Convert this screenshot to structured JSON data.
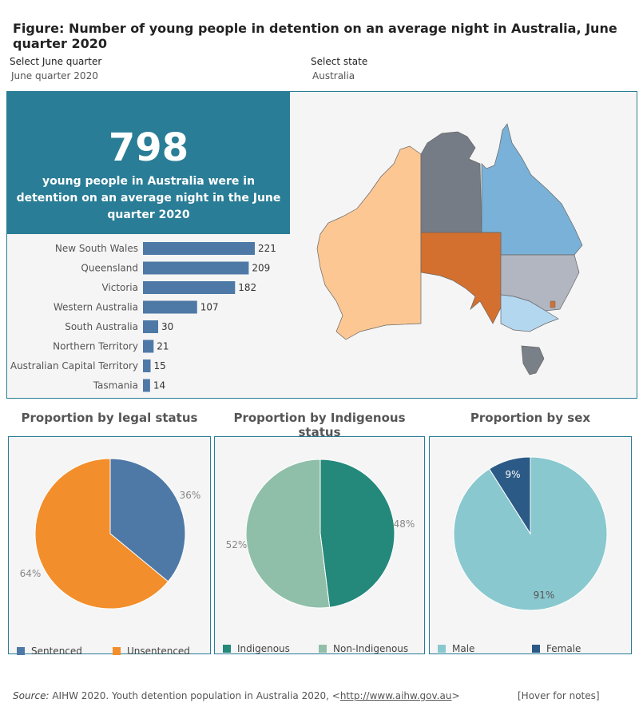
{
  "title": "Figure: Number of young people in detention on an average night in Australia, June quarter 2020",
  "filters": {
    "quarter": {
      "label": "Select June quarter",
      "value": "June quarter 2020"
    },
    "state": {
      "label": "Select state",
      "value": "Australia"
    }
  },
  "kpi": {
    "number": "798",
    "text": "young people in  Australia were in detention on an average night in the June quarter 2020"
  },
  "map": {
    "regions": [
      {
        "name": "Western Australia",
        "color": "#fdc793"
      },
      {
        "name": "Northern Territory",
        "color": "#757c86"
      },
      {
        "name": "Queensland",
        "color": "#7ab1d8"
      },
      {
        "name": "South Australia",
        "color": "#d4702f"
      },
      {
        "name": "New South Wales",
        "color": "#b2b6c0"
      },
      {
        "name": "Victoria",
        "color": "#b4d7f0"
      },
      {
        "name": "Tasmania",
        "color": "#7a8088"
      },
      {
        "name": "Australian Capital Territory",
        "color": "#d4702f"
      }
    ]
  },
  "chart_data": [
    {
      "type": "bar",
      "orientation": "horizontal",
      "categories": [
        "New South Wales",
        "Queensland",
        "Victoria",
        "Western Australia",
        "South Australia",
        "Northern Territory",
        "Australian Capital Territory",
        "Tasmania"
      ],
      "values": [
        221,
        209,
        182,
        107,
        30,
        21,
        15,
        14
      ],
      "color": "#4e79a7"
    },
    {
      "type": "pie",
      "title": "Proportion by legal status",
      "labels": [
        "Sentenced",
        "Unsentenced"
      ],
      "values": [
        36,
        64
      ],
      "display": [
        "36%",
        "64%"
      ],
      "colors": [
        "#4e79a7",
        "#f28e2b"
      ]
    },
    {
      "type": "pie",
      "title": "Proportion by Indigenous status",
      "labels": [
        "Indigenous",
        "Non-Indigenous"
      ],
      "values": [
        48,
        52
      ],
      "display": [
        "48%",
        "52%"
      ],
      "colors": [
        "#24887a",
        "#8fbfa8"
      ]
    },
    {
      "type": "pie",
      "title": "Proportion by sex",
      "labels": [
        "Male",
        "Female"
      ],
      "values": [
        91,
        9
      ],
      "display": [
        "91%",
        "9%"
      ],
      "colors": [
        "#8ac8cf",
        "#2b5a86"
      ]
    }
  ],
  "footer": {
    "source_label": "Source:",
    "source_text": " AIHW 2020. Youth detention population in Australia 2020, <",
    "link": "http://www.aihw.gov.au",
    "source_end": ">",
    "notes": "[Hover for notes]"
  }
}
